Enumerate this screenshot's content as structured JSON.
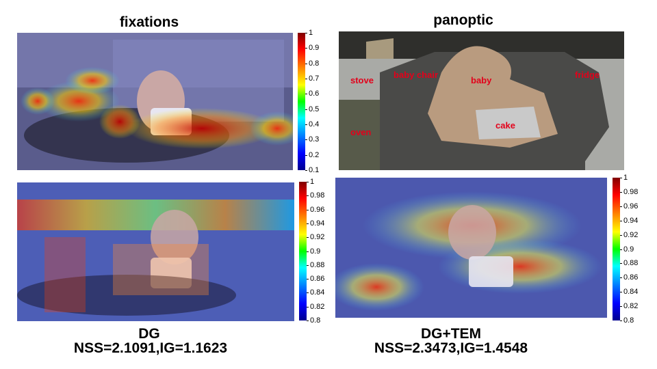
{
  "titles": {
    "top_left": "fixations",
    "top_right": "panoptic"
  },
  "colorbars": {
    "top": [
      "1",
      "0.9",
      "0.8",
      "0.7",
      "0.6",
      "0.5",
      "0.4",
      "0.3",
      "0.2",
      "0.1"
    ],
    "bottom_left": [
      "1",
      "0.98",
      "0.96",
      "0.94",
      "0.92",
      "0.9",
      "0.88",
      "0.86",
      "0.84",
      "0.82",
      "0.8"
    ],
    "bottom_right": [
      "1",
      "0.98",
      "0.96",
      "0.94",
      "0.92",
      "0.9",
      "0.88",
      "0.86",
      "0.84",
      "0.82",
      "0.8"
    ]
  },
  "panoptic_labels": {
    "stove": "stove",
    "baby_chair": "baby chair",
    "baby": "baby",
    "fridge": "fridge",
    "oven": "oven",
    "cake": "cake"
  },
  "captions": {
    "left_model": "DG",
    "left_metrics": "NSS=2.1091,IG=1.1623",
    "right_model": "DG+TEM",
    "right_metrics": "NSS=2.3473,IG=1.4548"
  },
  "colors": {
    "segment_label": "#e3001a",
    "chair": "#4a4a48",
    "baby": "#b99b7f",
    "fridge": "#a9aaa6",
    "cake": "#c9c9c9"
  }
}
